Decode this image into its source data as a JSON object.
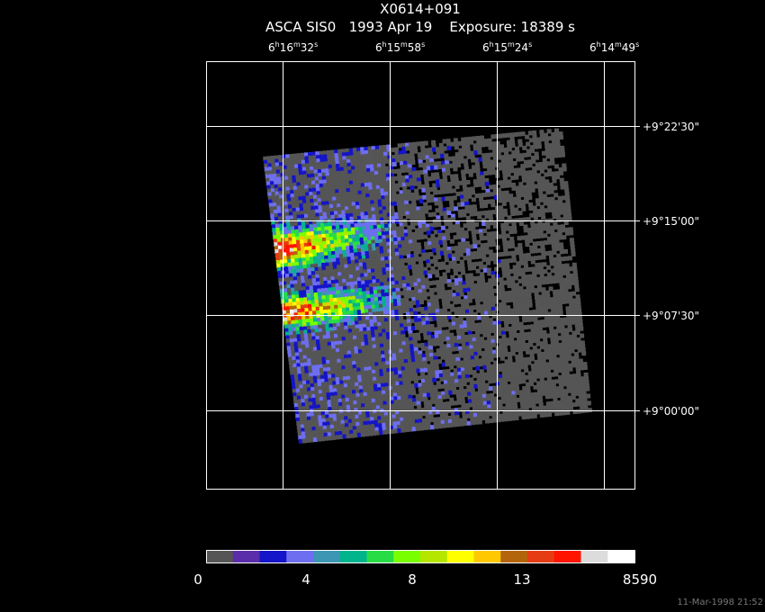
{
  "header": {
    "title": "X0614+091",
    "subtitle": "ASCA SIS0   1993 Apr 19    Exposure: 18389 s"
  },
  "ra_labels": [
    "6h16m32s",
    "6h15m58s",
    "6h15m24s",
    "6h14m49s"
  ],
  "dec_labels": [
    "+9°22'30\"",
    "+9°15'00\"",
    "+9°07'30\"",
    "+9°00'00\""
  ],
  "colorbar": {
    "colors": [
      "#555555",
      "#5a2daa",
      "#1414c8",
      "#6e6ef0",
      "#3c96b4",
      "#00b48c",
      "#28dc46",
      "#78ff00",
      "#b4e600",
      "#ffff00",
      "#ffc800",
      "#b4640a",
      "#e63c14",
      "#ff1400",
      "#dcdcdc",
      "#ffffff"
    ],
    "labels": [
      "0",
      "4",
      "8",
      "13",
      "8590"
    ]
  },
  "footer": "11-Mar-1998 21:52"
}
